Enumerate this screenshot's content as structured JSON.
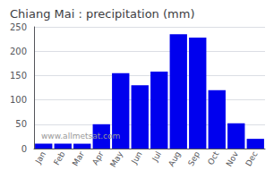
{
  "chart_data": {
    "type": "bar",
    "title": "Chiang Mai : precipitation (mm)",
    "categories": [
      "Jan",
      "Feb",
      "Mar",
      "Apr",
      "May",
      "Jun",
      "Jul",
      "Aug",
      "Sep",
      "Oct",
      "Nov",
      "Dec"
    ],
    "values": [
      10,
      10,
      10,
      50,
      155,
      130,
      158,
      235,
      228,
      120,
      52,
      20
    ],
    "color": "#0000ee",
    "ylim": [
      0,
      250
    ],
    "yticks": [
      0,
      50,
      100,
      150,
      200,
      250
    ],
    "grid": true,
    "annotations": [
      "www.allmetsat.com"
    ]
  }
}
